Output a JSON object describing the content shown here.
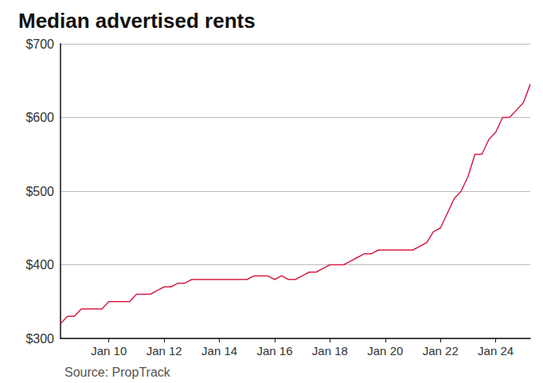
{
  "chart_data": {
    "type": "line",
    "title": "Median advertised rents",
    "source": "Source: PropTrack",
    "color": "#d41f45",
    "categories": [
      null,
      null,
      null,
      null,
      null,
      null,
      null,
      "Jan 10",
      null,
      null,
      null,
      null,
      null,
      null,
      null,
      "Jan 12",
      null,
      null,
      null,
      null,
      null,
      null,
      null,
      "Jan 14",
      null,
      null,
      null,
      null,
      null,
      null,
      null,
      "Jan 16",
      null,
      null,
      null,
      null,
      null,
      null,
      null,
      "Jan 18",
      null,
      null,
      null,
      null,
      null,
      null,
      null,
      "Jan 20",
      null,
      null,
      null,
      null,
      null,
      null,
      null,
      "Jan 22",
      null,
      null,
      null,
      null,
      null,
      null,
      null,
      "Jan 24",
      null,
      null,
      null,
      null,
      null
    ],
    "values": [
      320,
      330,
      330,
      340,
      340,
      340,
      340,
      350,
      350,
      350,
      350,
      360,
      360,
      360,
      365,
      370,
      370,
      375,
      375,
      380,
      380,
      380,
      380,
      380,
      380,
      380,
      380,
      380,
      385,
      385,
      385,
      380,
      385,
      380,
      380,
      385,
      390,
      390,
      395,
      400,
      400,
      400,
      405,
      410,
      415,
      415,
      420,
      420,
      420,
      420,
      420,
      420,
      425,
      430,
      445,
      450,
      470,
      490,
      500,
      520,
      550,
      550,
      570,
      580,
      600,
      600,
      610,
      620,
      645
    ],
    "ylim": [
      300,
      700
    ],
    "yticks": [
      {
        "value": 300,
        "label": "$300"
      },
      {
        "value": 400,
        "label": "$400"
      },
      {
        "value": 500,
        "label": "$500"
      },
      {
        "value": 600,
        "label": "$600"
      },
      {
        "value": 700,
        "label": "$700"
      }
    ],
    "grid": true
  }
}
